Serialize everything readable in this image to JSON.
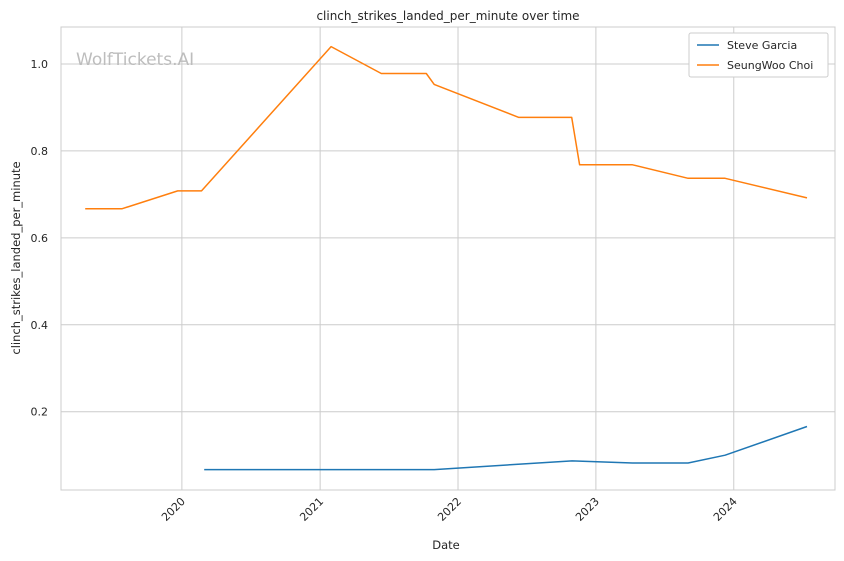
{
  "chart_data": {
    "type": "line",
    "title": "clinch_strikes_landed_per_minute over time",
    "xlabel": "Date",
    "ylabel": "clinch_strikes_landed_per_minute",
    "watermark": "WolfTickets.AI",
    "x_ticks": [
      "2020",
      "2021",
      "2022",
      "2023",
      "2024"
    ],
    "y_ticks": [
      "0.2",
      "0.4",
      "0.6",
      "0.8",
      "1.0"
    ],
    "xlim": [
      "2019-02-15",
      "2024-09-25"
    ],
    "ylim": [
      0.02,
      1.085
    ],
    "grid": true,
    "legend_position": "top-right",
    "series": [
      {
        "name": "Steve Garcia",
        "color": "#1f77b4",
        "points": [
          [
            "2020-02-29",
            0.067
          ],
          [
            "2020-08-15",
            0.067
          ],
          [
            "2021-06-01",
            0.067
          ],
          [
            "2021-10-30",
            0.067
          ],
          [
            "2022-06-25",
            0.08
          ],
          [
            "2022-10-30",
            0.087
          ],
          [
            "2023-04-08",
            0.082
          ],
          [
            "2023-09-02",
            0.082
          ],
          [
            "2023-12-09",
            0.1
          ],
          [
            "2024-07-13",
            0.166
          ]
        ]
      },
      {
        "name": "SeungWoo Choi",
        "color": "#ff7f0e",
        "points": [
          [
            "2019-04-20",
            0.667
          ],
          [
            "2019-07-27",
            0.667
          ],
          [
            "2019-12-21",
            0.708
          ],
          [
            "2020-02-22",
            0.708
          ],
          [
            "2021-01-30",
            1.04
          ],
          [
            "2021-06-12",
            0.978
          ],
          [
            "2021-10-09",
            0.978
          ],
          [
            "2021-10-30",
            0.953
          ],
          [
            "2022-06-11",
            0.877
          ],
          [
            "2022-10-29",
            0.877
          ],
          [
            "2022-11-19",
            0.768
          ],
          [
            "2023-04-08",
            0.768
          ],
          [
            "2023-09-02",
            0.737
          ],
          [
            "2023-12-09",
            0.737
          ],
          [
            "2024-07-13",
            0.692
          ]
        ]
      }
    ]
  }
}
